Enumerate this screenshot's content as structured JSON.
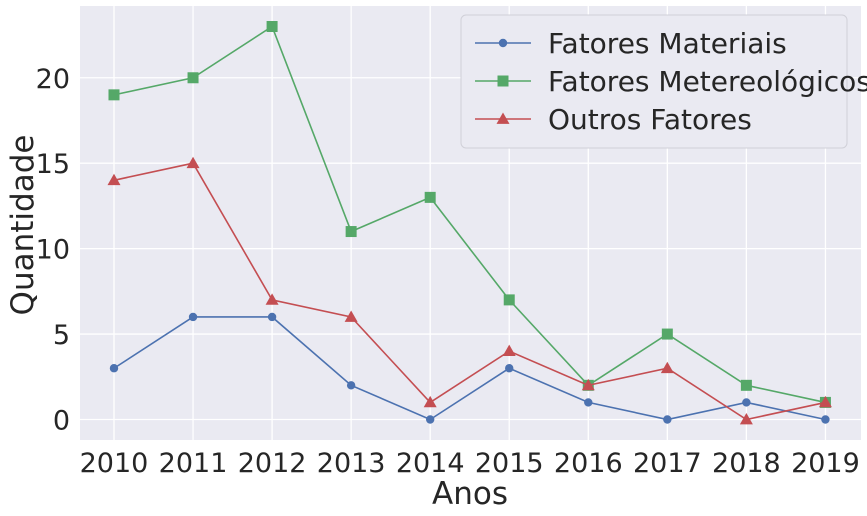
{
  "chart_data": {
    "type": "line",
    "title": "",
    "xlabel": "Anos",
    "ylabel": "Quantidade",
    "x": [
      2010,
      2011,
      2012,
      2013,
      2014,
      2015,
      2016,
      2017,
      2018,
      2019
    ],
    "x_tick_labels": [
      "2010",
      "2011",
      "2012",
      "2013",
      "2014",
      "2015",
      "2016",
      "2017",
      "2018",
      "2019"
    ],
    "y_ticks": [
      0,
      5,
      10,
      15,
      20
    ],
    "y_tick_labels": [
      "0",
      "5",
      "10",
      "15",
      "20"
    ],
    "xlim": [
      2009.57,
      2019.45
    ],
    "ylim": [
      -1.2,
      24.2
    ],
    "grid": true,
    "legend_position": "top-right",
    "series": [
      {
        "name": "Fatores Materiais",
        "color": "#4c72b0",
        "marker": "circle",
        "values": [
          3,
          6,
          6,
          2,
          0,
          3,
          1,
          0,
          1,
          0
        ]
      },
      {
        "name": "Fatores Metereológicos",
        "color": "#55a868",
        "marker": "square",
        "values": [
          19,
          20,
          23,
          11,
          13,
          7,
          2,
          5,
          2,
          1
        ]
      },
      {
        "name": "Outros Fatores",
        "color": "#c44e52",
        "marker": "triangle",
        "values": [
          14,
          15,
          7,
          6,
          1,
          4,
          2,
          3,
          0,
          1
        ]
      }
    ]
  }
}
